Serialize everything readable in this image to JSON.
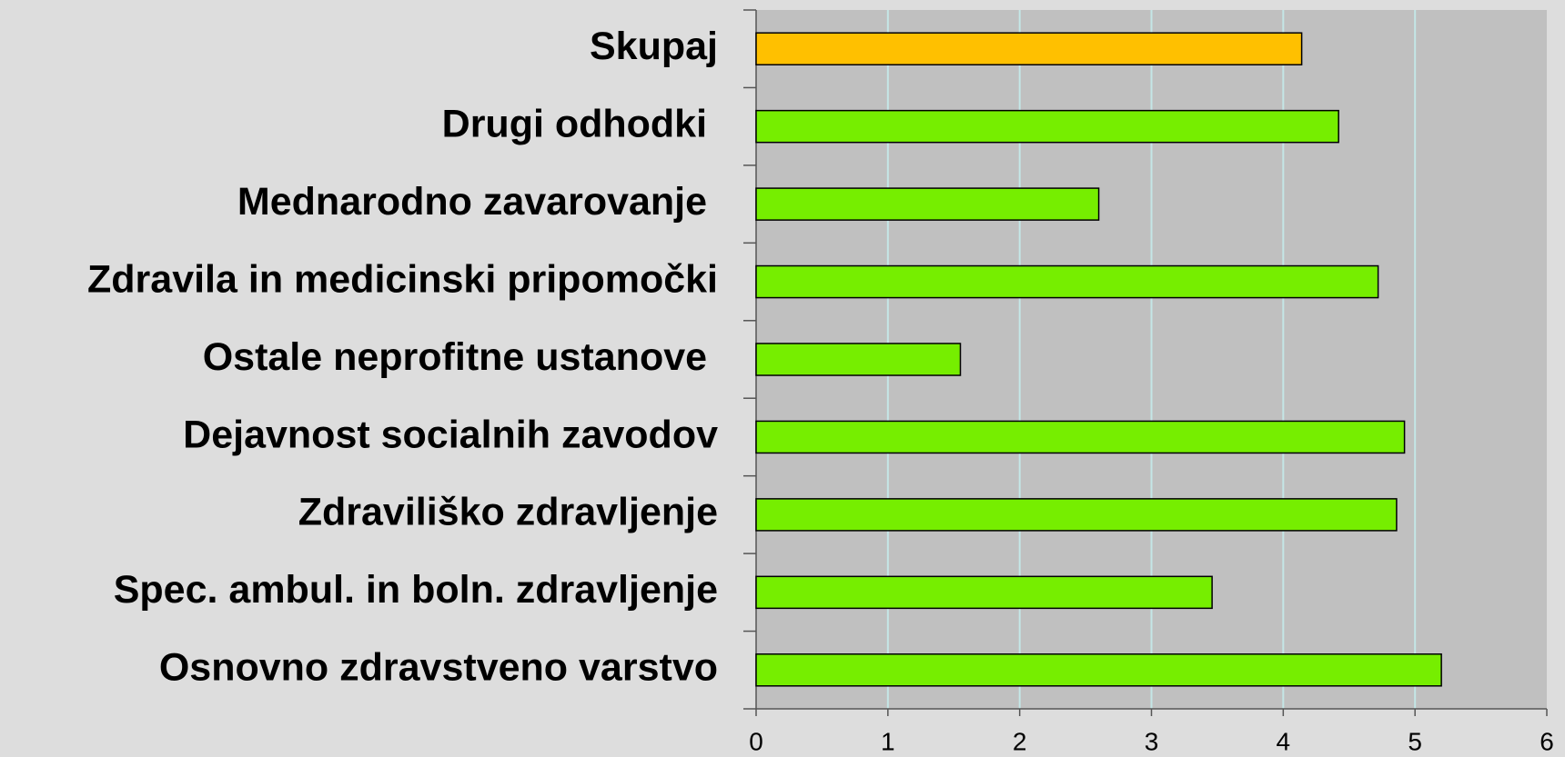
{
  "chart_data": {
    "type": "barh",
    "categories": [
      "Skupaj",
      "Drugi odhodki ",
      "Mednarodno zavarovanje ",
      "Zdravila in medicinski pripomočki",
      "Ostale neprofitne ustanove ",
      "Dejavnost socialnih zavodov",
      "Zdraviliško zdravljenje",
      "Spec. ambul. in boln. zdravljenje",
      "Osnovno zdravstveno varstvo"
    ],
    "values": [
      4.14,
      4.42,
      2.6,
      4.72,
      1.55,
      4.92,
      4.86,
      3.46,
      5.2
    ],
    "colors": [
      "#ffc000",
      "#76ee00",
      "#76ee00",
      "#76ee00",
      "#76ee00",
      "#76ee00",
      "#76ee00",
      "#76ee00",
      "#76ee00"
    ],
    "xlim": [
      0,
      6
    ],
    "xticks": [
      0,
      1,
      2,
      3,
      4,
      5,
      6
    ],
    "grid": true
  }
}
